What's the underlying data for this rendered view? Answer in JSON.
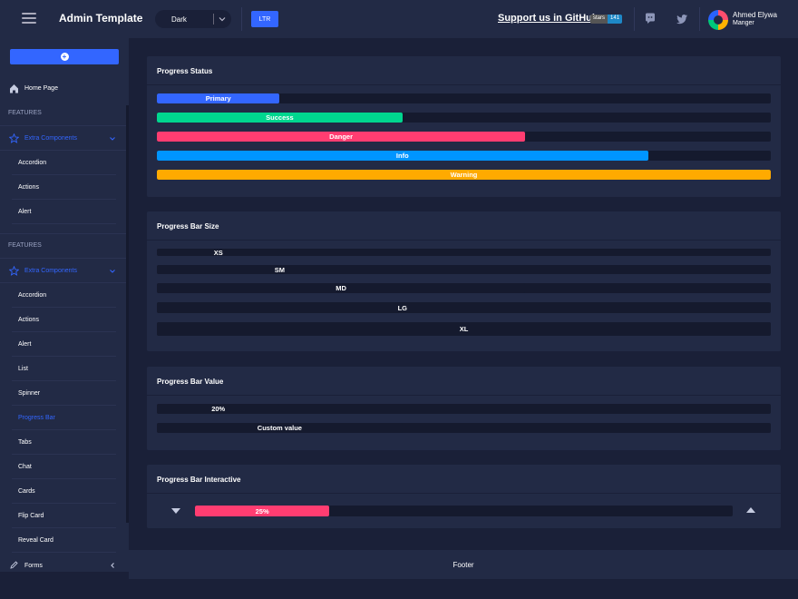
{
  "header": {
    "brand": "Admin Template",
    "theme_select": {
      "value": "Dark"
    },
    "dir_button": "LTR",
    "github": {
      "link_text": "Support us in GitHub",
      "badge_label": "stars",
      "badge_count": "141"
    },
    "icons": [
      "menu-icon",
      "discord-icon",
      "twitter-icon"
    ],
    "user": {
      "name": "Ahmed Elywa",
      "role": "Manger"
    }
  },
  "sidebar": {
    "home": "Home Page",
    "section_1": {
      "heading": "FEATURES",
      "group": "Extra Components",
      "items": [
        "Accordion",
        "Actions",
        "Alert"
      ]
    },
    "section_2": {
      "heading": "FEATURES",
      "group": "Extra Components",
      "items": [
        "Accordion",
        "Actions",
        "Alert",
        "List",
        "Spinner",
        "Progress Bar",
        "Tabs",
        "Chat",
        "Cards",
        "Flip Card",
        "Reveal Card"
      ],
      "active_item": "Progress Bar"
    },
    "forms": "Forms"
  },
  "status_card": {
    "title": "Progress Status",
    "bars": [
      {
        "label": "Primary",
        "value": 20,
        "color": "#3366ff"
      },
      {
        "label": "Success",
        "value": 40,
        "color": "#00d68f"
      },
      {
        "label": "Danger",
        "value": 60,
        "color": "#ff3d71"
      },
      {
        "label": "Info",
        "value": 80,
        "color": "#0095ff"
      },
      {
        "label": "Warning",
        "value": 100,
        "color": "#ffaa00"
      }
    ]
  },
  "size_card": {
    "title": "Progress Bar Size",
    "bars": [
      {
        "label": "XS",
        "value": 20
      },
      {
        "label": "SM",
        "value": 40
      },
      {
        "label": "MD",
        "value": 60
      },
      {
        "label": "LG",
        "value": 80
      },
      {
        "label": "XL",
        "value": 100
      }
    ]
  },
  "value_card": {
    "title": "Progress Bar Value",
    "bars": [
      {
        "label": "20%",
        "value": 20
      },
      {
        "label": "Custom value",
        "value": 40
      }
    ]
  },
  "interactive_card": {
    "title": "Progress Bar Interactive",
    "label": "25%",
    "value": 25,
    "color": "#ff3d71"
  },
  "footer": {
    "text": "Footer"
  },
  "colors": {
    "accent": "#3366ff",
    "bg": "#1a2038",
    "surface": "#222a45",
    "track": "#151a2e"
  }
}
